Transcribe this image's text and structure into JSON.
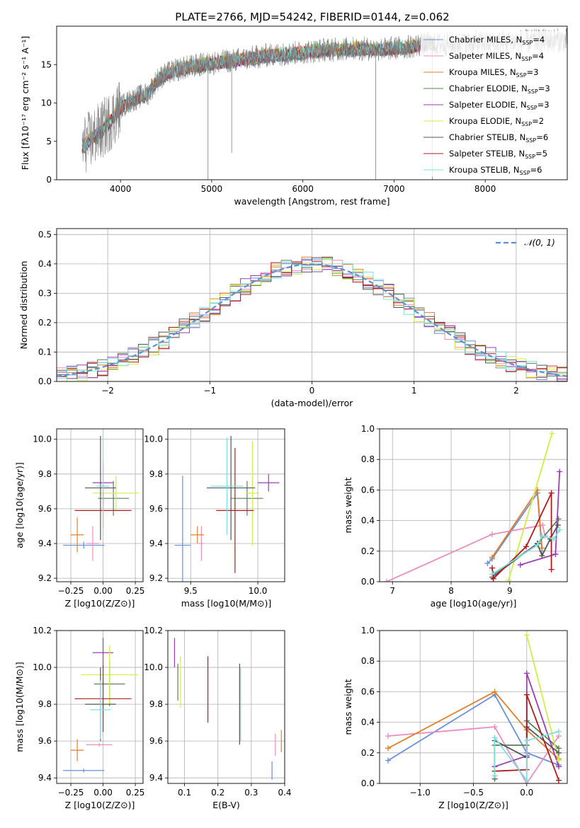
{
  "figure_title": "PLATE=2766, MJD=54242, FIBERID=0144, z=0.062",
  "series_meta": [
    {
      "key": "cm",
      "name": "Chabrier MILES",
      "nssp": 4,
      "color": "#6a8fdb"
    },
    {
      "key": "sm",
      "name": "Salpeter MILES",
      "nssp": 4,
      "color": "#e88fbf"
    },
    {
      "key": "km",
      "name": "Kroupa MILES",
      "nssp": 3,
      "color": "#e27f2b"
    },
    {
      "key": "ce",
      "name": "Chabrier ELODIE",
      "nssp": 3,
      "color": "#5b7f5b"
    },
    {
      "key": "se",
      "name": "Salpeter ELODIE",
      "nssp": 3,
      "color": "#9a3fb3"
    },
    {
      "key": "ke",
      "name": "Kroupa ELODIE",
      "nssp": 2,
      "color": "#d3ec4a"
    },
    {
      "key": "cs",
      "name": "Chabrier STELIB",
      "nssp": 6,
      "color": "#555555"
    },
    {
      "key": "ss",
      "name": "Salpeter STELIB",
      "nssp": 5,
      "color": "#b01c1c"
    },
    {
      "key": "ks",
      "name": "Kroupa STELIB",
      "nssp": 6,
      "color": "#7ee0e0"
    }
  ],
  "chart_data": [
    {
      "id": "spectrum",
      "type": "line",
      "title": "PLATE=2766, MJD=54242, FIBERID=0144, z=0.062",
      "xlabel": "wavelength [Angstrom, rest frame]",
      "ylabel": "Flux [fλ10⁻¹⁷ erg cm⁻² s⁻¹ A⁻¹]",
      "xlim": [
        3300,
        8900
      ],
      "ylim": [
        0,
        20
      ],
      "xticks": [
        4000,
        5000,
        6000,
        7000,
        8000
      ],
      "yticks": [
        0,
        5,
        10,
        15
      ],
      "data_color": "#808080",
      "envelope": {
        "x": [
          3600,
          3700,
          3800,
          3900,
          4000,
          4100,
          4200,
          4300,
          4400,
          4500,
          4600,
          4700,
          4800,
          4900,
          5000,
          5200,
          5400,
          5600,
          5800,
          6000,
          6200,
          6400,
          6600,
          6800,
          7000,
          7200,
          7400
        ],
        "y": [
          4.5,
          5.5,
          6.5,
          7.8,
          9.5,
          10.2,
          10.8,
          11.2,
          13.0,
          13.8,
          14.2,
          14.6,
          14.8,
          15.0,
          15.2,
          15.5,
          15.8,
          16.2,
          16.4,
          16.6,
          16.9,
          17.0,
          17.1,
          17.0,
          17.1,
          17.4,
          17.8
        ]
      },
      "legend": "upper-right"
    },
    {
      "id": "residuals",
      "type": "histogram",
      "xlabel": "(data-model)/error",
      "ylabel": "Normed distribution",
      "xlim": [
        -2.5,
        2.5
      ],
      "ylim": [
        0,
        0.52
      ],
      "xticks": [
        -2,
        -1,
        0,
        1,
        2
      ],
      "yticks": [
        0.0,
        0.1,
        0.2,
        0.3,
        0.4,
        0.5
      ],
      "reference": {
        "name": "𝒩(0, 1)",
        "color": "#5b8fd6",
        "style": "dashed"
      },
      "legend": "upper-right"
    },
    {
      "id": "age_vs_Z",
      "type": "errorbar",
      "xlabel": "Z [log10(Z/Z⊙)]",
      "ylabel": "age  [log10(age/yr)]",
      "xlim": [
        -0.36,
        0.31
      ],
      "ylim": [
        9.18,
        10.06
      ],
      "xticks": [
        -0.25,
        0.0,
        0.25
      ],
      "yticks": [
        9.2,
        9.4,
        9.6,
        9.8,
        10.0
      ],
      "points": [
        {
          "s": "cm",
          "x": -0.15,
          "xerr": 0.16,
          "y": 9.39,
          "yerr": 0.02
        },
        {
          "s": "sm",
          "x": -0.08,
          "xerr": 0.05,
          "y": 9.4,
          "yerr": 0.1
        },
        {
          "s": "km",
          "x": -0.2,
          "xerr": 0.05,
          "y": 9.45,
          "yerr": 0.1
        },
        {
          "s": "ce",
          "x": 0.08,
          "xerr": 0.12,
          "y": 9.66,
          "yerr": 0.1
        },
        {
          "s": "se",
          "x": 0.0,
          "xerr": 0.08,
          "y": 9.75,
          "yerr": 0.12
        },
        {
          "s": "ke",
          "x": 0.1,
          "xerr": 0.18,
          "y": 9.69,
          "yerr": 0.1
        },
        {
          "s": "cs",
          "x": -0.02,
          "xerr": 0.12,
          "y": 9.72,
          "yerr": 0.3
        },
        {
          "s": "ss",
          "x": 0.0,
          "xerr": 0.22,
          "y": 9.59,
          "yerr": 0.1
        },
        {
          "s": "ks",
          "x": 0.0,
          "xerr": 0.05,
          "y": 9.73,
          "yerr": 0.28
        }
      ]
    },
    {
      "id": "age_vs_mass",
      "type": "errorbar",
      "xlabel": "mass [log10(M/M⊙)]",
      "ylabel": "",
      "xlim": [
        9.33,
        10.2
      ],
      "ylim": [
        9.18,
        10.06
      ],
      "xticks": [
        9.5,
        10.0
      ],
      "yticks": [
        9.2,
        9.4,
        9.6,
        9.8,
        10.0
      ],
      "points": [
        {
          "s": "cm",
          "x": 9.44,
          "xerr": 0.06,
          "y": 9.39,
          "yerr": 0.4
        },
        {
          "s": "sm",
          "x": 9.58,
          "xerr": 0.02,
          "y": 9.4,
          "yerr": 0.1
        },
        {
          "s": "km",
          "x": 9.55,
          "xerr": 0.05,
          "y": 9.45,
          "yerr": 0.05
        },
        {
          "s": "ce",
          "x": 9.92,
          "xerr": 0.12,
          "y": 9.66,
          "yerr": 0.1
        },
        {
          "s": "se",
          "x": 10.08,
          "xerr": 0.08,
          "y": 9.75,
          "yerr": 0.05
        },
        {
          "s": "ke",
          "x": 9.96,
          "xerr": 0.05,
          "y": 9.69,
          "yerr": 0.3
        },
        {
          "s": "cs",
          "x": 9.8,
          "xerr": 0.18,
          "y": 9.72,
          "yerr": 0.3
        },
        {
          "s": "ss",
          "x": 9.83,
          "xerr": 0.14,
          "y": 9.59,
          "yerr": 0.36
        },
        {
          "s": "ks",
          "x": 9.77,
          "xerr": 0.12,
          "y": 9.73,
          "yerr": 0.28
        }
      ]
    },
    {
      "id": "mw_vs_age",
      "type": "line",
      "xlabel": "age  [log10(age/yr)]",
      "ylabel": "mass weight",
      "xlim": [
        6.78,
        9.98
      ],
      "ylim": [
        0,
        1.0
      ],
      "xticks": [
        7,
        8,
        9
      ],
      "yticks": [
        0.0,
        0.2,
        0.4,
        0.6,
        0.8,
        1.0
      ],
      "series": [
        {
          "s": "cm",
          "x": [
            8.62,
            8.7,
            9.47,
            9.55
          ],
          "y": [
            0.12,
            0.15,
            0.58,
            0.2
          ]
        },
        {
          "s": "sm",
          "x": [
            6.9,
            8.7,
            9.56,
            9.6
          ],
          "y": [
            0.0,
            0.31,
            0.37,
            0.3
          ]
        },
        {
          "s": "km",
          "x": [
            8.7,
            9.47,
            9.55
          ],
          "y": [
            0.16,
            0.6,
            0.22
          ]
        },
        {
          "s": "ce",
          "x": [
            8.72,
            9.48,
            9.83
          ],
          "y": [
            0.05,
            0.25,
            0.41
          ]
        },
        {
          "s": "se",
          "x": [
            9.18,
            9.78,
            9.85
          ],
          "y": [
            0.11,
            0.18,
            0.72
          ]
        },
        {
          "s": "ke",
          "x": [
            8.98,
            9.72
          ],
          "y": [
            0.01,
            0.97
          ]
        },
        {
          "s": "cs",
          "x": [
            8.7,
            9.47,
            9.55,
            9.69,
            9.82
          ],
          "y": [
            0.03,
            0.25,
            0.17,
            0.28,
            0.37
          ]
        },
        {
          "s": "ss",
          "x": [
            8.7,
            8.72,
            9.28,
            9.71,
            9.71
          ],
          "y": [
            0.09,
            0.02,
            0.23,
            0.58,
            0.08
          ]
        },
        {
          "s": "ks",
          "x": [
            8.7,
            9.47,
            9.55,
            9.75,
            9.85
          ],
          "y": [
            0.05,
            0.24,
            0.3,
            0.28,
            0.34
          ]
        }
      ]
    },
    {
      "id": "mass_vs_Z",
      "type": "errorbar",
      "xlabel": "Z [log10(Z/Z⊙)]",
      "ylabel": "mass [log10(M/M⊙)]",
      "xlim": [
        -0.36,
        0.31
      ],
      "ylim": [
        9.37,
        10.2
      ],
      "xticks": [
        -0.25,
        0.0,
        0.25
      ],
      "yticks": [
        9.4,
        9.6,
        9.8,
        10.0,
        10.2
      ],
      "points": [
        {
          "s": "cm",
          "x": -0.15,
          "xerr": 0.16,
          "y": 9.44,
          "yerr": 0.01
        },
        {
          "s": "sm",
          "x": -0.03,
          "xerr": 0.1,
          "y": 9.58,
          "yerr": 0.01
        },
        {
          "s": "km",
          "x": -0.2,
          "xerr": 0.05,
          "y": 9.55,
          "yerr": 0.06
        },
        {
          "s": "ce",
          "x": 0.05,
          "xerr": 0.12,
          "y": 9.91,
          "yerr": 0.12
        },
        {
          "s": "se",
          "x": 0.0,
          "xerr": 0.08,
          "y": 10.08,
          "yerr": 0.08
        },
        {
          "s": "ke",
          "x": 0.05,
          "xerr": 0.22,
          "y": 9.96,
          "yerr": 0.16
        },
        {
          "s": "cs",
          "x": -0.02,
          "xerr": 0.12,
          "y": 9.8,
          "yerr": 0.2
        },
        {
          "s": "ss",
          "x": 0.0,
          "xerr": 0.22,
          "y": 9.83,
          "yerr": 0.18
        },
        {
          "s": "ks",
          "x": -0.02,
          "xerr": 0.08,
          "y": 9.77,
          "yerr": 0.16
        }
      ]
    },
    {
      "id": "mass_vs_ebv",
      "type": "errorbar",
      "xlabel": "E(B-V)",
      "ylabel": "",
      "xlim": [
        0.05,
        0.4
      ],
      "ylim": [
        9.37,
        10.2
      ],
      "xticks": [
        0.1,
        0.2,
        0.3,
        0.4
      ],
      "yticks": [
        9.4,
        9.6,
        9.8,
        10.0,
        10.2
      ],
      "points": [
        {
          "s": "cm",
          "x": 0.362,
          "xerr": 0.0,
          "y": 9.44,
          "yerr": 0.05
        },
        {
          "s": "sm",
          "x": 0.372,
          "xerr": 0.0,
          "y": 9.58,
          "yerr": 0.06
        },
        {
          "s": "km",
          "x": 0.39,
          "xerr": 0.0,
          "y": 9.6,
          "yerr": 0.06
        },
        {
          "s": "ce",
          "x": 0.08,
          "xerr": 0.0,
          "y": 9.92,
          "yerr": 0.1
        },
        {
          "s": "se",
          "x": 0.07,
          "xerr": 0.0,
          "y": 10.08,
          "yerr": 0.08
        },
        {
          "s": "ke",
          "x": 0.088,
          "xerr": 0.0,
          "y": 9.92,
          "yerr": 0.14
        },
        {
          "s": "cs",
          "x": 0.265,
          "xerr": 0.0,
          "y": 9.8,
          "yerr": 0.22
        },
        {
          "s": "ss",
          "x": 0.17,
          "xerr": 0.0,
          "y": 9.88,
          "yerr": 0.18
        },
        {
          "s": "ks",
          "x": 0.268,
          "xerr": 0.0,
          "y": 9.8,
          "yerr": 0.2
        }
      ]
    },
    {
      "id": "mw_vs_Z",
      "type": "line",
      "xlabel": "Z [log10(Z/Z⊙)]",
      "ylabel": "mass weight",
      "xlim": [
        -1.38,
        0.38
      ],
      "ylim": [
        0,
        1.0
      ],
      "xticks": [
        -1.0,
        -0.5,
        0.0
      ],
      "yticks": [
        0.0,
        0.2,
        0.4,
        0.6,
        0.8,
        1.0
      ],
      "series": [
        {
          "s": "cm",
          "x": [
            -1.3,
            -0.3,
            0.0,
            0.3
          ],
          "y": [
            0.15,
            0.58,
            0.2,
            0.12
          ]
        },
        {
          "s": "sm",
          "x": [
            -1.3,
            -0.3,
            0.0,
            0.3
          ],
          "y": [
            0.31,
            0.37,
            0.0,
            0.31
          ]
        },
        {
          "s": "km",
          "x": [
            -1.3,
            -0.3,
            0.0,
            0.3
          ],
          "y": [
            0.23,
            0.6,
            0.35,
            0.16
          ]
        },
        {
          "s": "ce",
          "x": [
            -0.3,
            -0.3,
            0.0,
            0.0,
            0.3
          ],
          "y": [
            0.05,
            0.25,
            0.25,
            0.41,
            0.23
          ]
        },
        {
          "s": "se",
          "x": [
            -0.3,
            0.0,
            0.0,
            0.3
          ],
          "y": [
            0.11,
            0.18,
            0.72,
            0.11
          ]
        },
        {
          "s": "ke",
          "x": [
            0.0,
            0.3
          ],
          "y": [
            0.97,
            0.15
          ]
        },
        {
          "s": "cs",
          "x": [
            -0.3,
            -0.3,
            0.0,
            0.0,
            0.3
          ],
          "y": [
            0.03,
            0.28,
            0.17,
            0.37,
            0.2
          ]
        },
        {
          "s": "ss",
          "x": [
            -0.3,
            0.0,
            0.0,
            0.3
          ],
          "y": [
            0.08,
            0.09,
            0.58,
            0.02
          ]
        },
        {
          "s": "ks",
          "x": [
            -0.3,
            -0.3,
            0.0,
            0.0,
            0.3
          ],
          "y": [
            0.05,
            0.3,
            0.02,
            0.28,
            0.34
          ]
        }
      ]
    }
  ]
}
